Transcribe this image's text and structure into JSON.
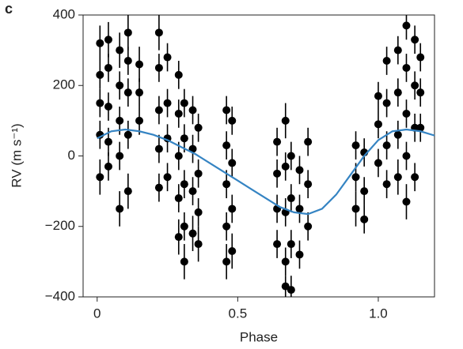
{
  "chart_data": {
    "type": "scatter",
    "panel_label": "c",
    "x_label": "Phase",
    "y_label": "RV (m s⁻¹)",
    "xlim": [
      -0.05,
      1.2
    ],
    "ylim": [
      -400,
      400
    ],
    "xticks": [
      0,
      0.5,
      {
        "value": 1,
        "label": "1.0"
      }
    ],
    "yticks": [
      {
        "value": -400,
        "label": "−400"
      },
      {
        "value": -200,
        "label": "−200"
      },
      0,
      200,
      400
    ],
    "series": [
      {
        "type": "scatter",
        "color": "#000000",
        "x": [
          0.01,
          0.01,
          0.01,
          0.01,
          0.01,
          0.04,
          0.04,
          0.04,
          0.04,
          0.04,
          0.08,
          0.08,
          0.08,
          0.08,
          0.08,
          0.11,
          0.11,
          0.11,
          0.11,
          0.11,
          0.15,
          0.15,
          0.15,
          0.22,
          0.22,
          0.22,
          0.22,
          0.22,
          0.25,
          0.25,
          0.25,
          0.25,
          0.29,
          0.29,
          0.29,
          0.29,
          0.29,
          0.31,
          0.31,
          0.31,
          0.31,
          0.31,
          0.34,
          0.34,
          0.34,
          0.34,
          0.36,
          0.36,
          0.36,
          0.36,
          0.46,
          0.46,
          0.46,
          0.46,
          0.46,
          0.48,
          0.48,
          0.48,
          0.48,
          0.64,
          0.64,
          0.64,
          0.64,
          0.67,
          0.67,
          0.67,
          0.67,
          0.67,
          0.69,
          0.69,
          0.69,
          0.69,
          0.72,
          0.72,
          0.72,
          0.75,
          0.75,
          0.75,
          0.92,
          0.92,
          0.92,
          0.95,
          0.95,
          0.95,
          1.0,
          1.0,
          1.0,
          1.03,
          1.03,
          1.03,
          1.03,
          1.07,
          1.07,
          1.07,
          1.07,
          1.1,
          1.1,
          1.1,
          1.1,
          1.1,
          1.13,
          1.13,
          1.13,
          1.13,
          1.15,
          1.15,
          1.15
        ],
        "values": [
          320,
          230,
          150,
          60,
          -60,
          330,
          250,
          140,
          40,
          -30,
          300,
          200,
          100,
          0,
          -150,
          350,
          270,
          180,
          60,
          -100,
          260,
          180,
          100,
          350,
          250,
          130,
          20,
          -90,
          280,
          150,
          50,
          -60,
          230,
          120,
          0,
          -120,
          -230,
          150,
          50,
          -80,
          -200,
          -300,
          130,
          20,
          -100,
          -220,
          80,
          -50,
          -160,
          -250,
          130,
          30,
          -80,
          -200,
          -300,
          100,
          -20,
          -150,
          -270,
          40,
          -50,
          -150,
          -250,
          100,
          -30,
          -160,
          -300,
          -370,
          0,
          -120,
          -250,
          -380,
          -40,
          -150,
          -280,
          40,
          -80,
          -200,
          30,
          -60,
          -150,
          10,
          -100,
          -180,
          170,
          90,
          -20,
          270,
          150,
          30,
          -80,
          300,
          180,
          60,
          -60,
          370,
          250,
          120,
          0,
          -130,
          330,
          200,
          80,
          -60,
          280,
          180,
          80
        ],
        "errors": [
          50,
          40,
          40,
          40,
          50,
          50,
          40,
          40,
          40,
          40,
          50,
          40,
          40,
          40,
          50,
          50,
          40,
          40,
          40,
          50,
          50,
          40,
          40,
          50,
          40,
          40,
          40,
          40,
          40,
          40,
          40,
          40,
          40,
          40,
          40,
          40,
          50,
          40,
          40,
          40,
          40,
          50,
          40,
          40,
          40,
          50,
          40,
          40,
          40,
          50,
          40,
          40,
          40,
          40,
          50,
          40,
          40,
          40,
          50,
          40,
          40,
          40,
          40,
          50,
          40,
          40,
          40,
          30,
          40,
          40,
          40,
          40,
          40,
          40,
          40,
          40,
          40,
          40,
          40,
          40,
          50,
          40,
          40,
          40,
          40,
          40,
          40,
          40,
          40,
          40,
          40,
          40,
          40,
          40,
          50,
          40,
          40,
          40,
          40,
          50,
          40,
          40,
          40,
          40,
          40,
          40,
          40
        ]
      },
      {
        "type": "line",
        "color": "#3584c3",
        "x": [
          0,
          0.05,
          0.1,
          0.15,
          0.2,
          0.25,
          0.3,
          0.35,
          0.4,
          0.45,
          0.5,
          0.55,
          0.6,
          0.65,
          0.7,
          0.75,
          0.8,
          0.85,
          0.9,
          0.95,
          1.0,
          1.05,
          1.1,
          1.15,
          1.2
        ],
        "values": [
          50,
          70,
          75,
          70,
          60,
          45,
          25,
          5,
          -20,
          -45,
          -70,
          -95,
          -120,
          -145,
          -160,
          -165,
          -150,
          -110,
          -55,
          0,
          45,
          70,
          75,
          70,
          58
        ]
      }
    ]
  }
}
